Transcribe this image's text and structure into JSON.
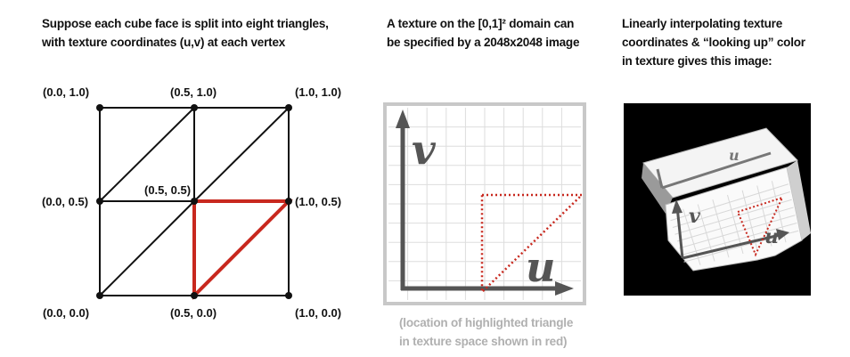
{
  "captions": {
    "left": [
      "Suppose each cube face is split into eight triangles,",
      "with texture coordinates (u,v) at each vertex"
    ],
    "middle": [
      "A texture on the [0,1]² domain can",
      "be specified by a 2048x2048 image"
    ],
    "right": [
      "Linearly interpolating texture",
      "coordinates & “looking up” color",
      "in texture gives this image:"
    ],
    "note": [
      "(location of highlighted triangle",
      "in texture space shown in red)"
    ]
  },
  "grid_labels": {
    "tl": "(0.0, 1.0)",
    "tm": "(0.5, 1.0)",
    "tr": "(1.0, 1.0)",
    "ml": "(0.0, 0.5)",
    "mm": "(0.5, 0.5)",
    "mr": "(1.0, 0.5)",
    "bl": "(0.0, 0.0)",
    "bm": "(0.5, 0.0)",
    "br": "(1.0, 0.0)"
  },
  "texture_axes": {
    "u": "u",
    "v": "v"
  },
  "colors": {
    "highlight": "#c8281e",
    "grid": "#dddddd",
    "axis": "#555555",
    "border": "#c8c8c8"
  }
}
